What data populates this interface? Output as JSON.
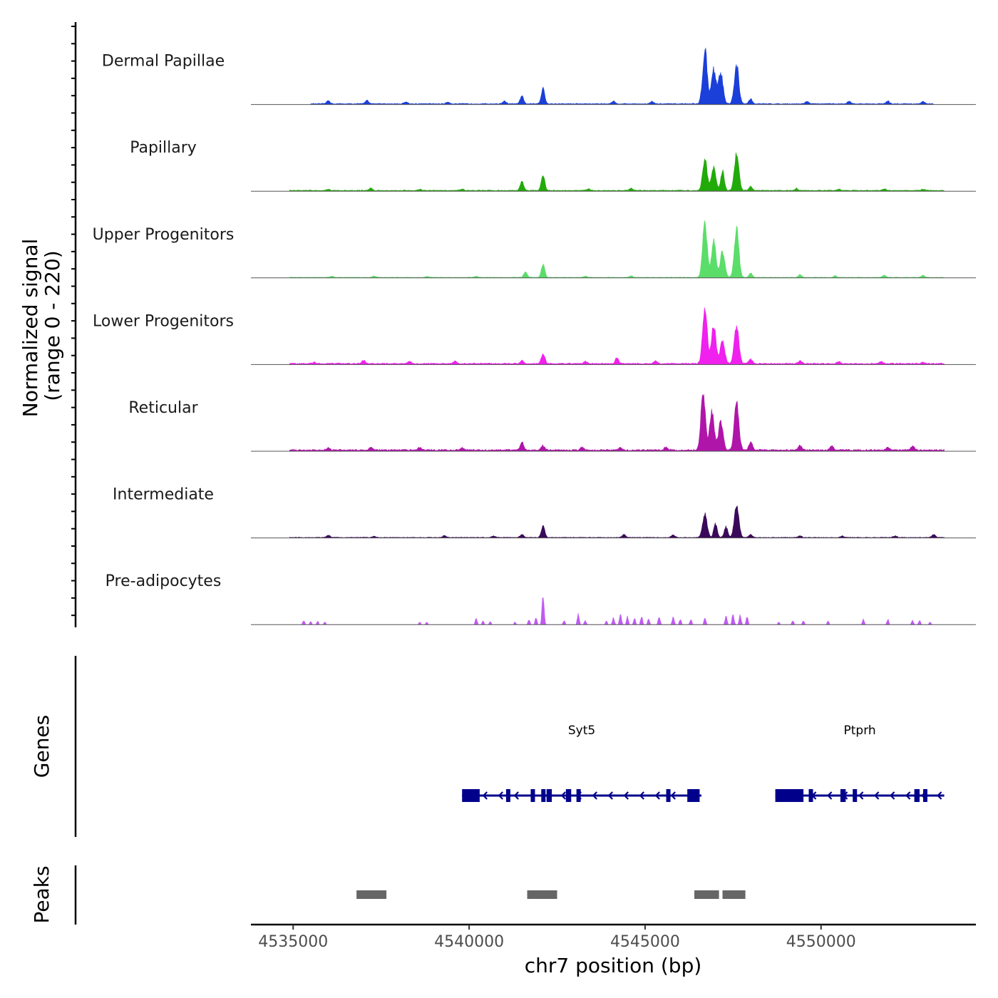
{
  "chart_data": {
    "type": "area",
    "title": "",
    "y_axis_title_line1": "Normalized signal",
    "y_axis_title_line2": "(range 0 - 220)",
    "y_range": [
      0,
      220
    ],
    "x_axis_title": "chr7 position (bp)",
    "x_range": [
      4533800,
      4554400
    ],
    "x_ticks": [
      4535000,
      4540000,
      4545000,
      4550000
    ],
    "x_tick_labels": [
      "4535000",
      "4540000",
      "4545000",
      "4550000"
    ],
    "genes_panel_title": "Genes",
    "peaks_panel_title": "Peaks",
    "tracks": [
      {
        "name": "Dermal Papillae",
        "color": "#1B3FD9",
        "range": [
          4535500,
          4553200
        ],
        "baseline": 3,
        "noise": 0.22,
        "peaks": [
          [
            4536000,
            12
          ],
          [
            4537100,
            14
          ],
          [
            4538200,
            8
          ],
          [
            4539400,
            7
          ],
          [
            4541000,
            10
          ],
          [
            4541500,
            28
          ],
          [
            4542100,
            60
          ],
          [
            4544100,
            10
          ],
          [
            4545200,
            9
          ],
          [
            4546700,
            210
          ],
          [
            4546950,
            130
          ],
          [
            4547150,
            120
          ],
          [
            4547600,
            150
          ],
          [
            4548000,
            18
          ],
          [
            4549600,
            10
          ],
          [
            4550800,
            9
          ],
          [
            4551900,
            10
          ],
          [
            4552900,
            8
          ]
        ]
      },
      {
        "name": "Papillary",
        "color": "#22AA0A",
        "range": [
          4534900,
          4553500
        ],
        "baseline": 3,
        "noise": 0.2,
        "peaks": [
          [
            4536000,
            5
          ],
          [
            4537200,
            9
          ],
          [
            4538600,
            5
          ],
          [
            4539800,
            6
          ],
          [
            4541500,
            35
          ],
          [
            4542100,
            60
          ],
          [
            4543400,
            6
          ],
          [
            4544600,
            8
          ],
          [
            4546700,
            120
          ],
          [
            4546950,
            90
          ],
          [
            4547200,
            75
          ],
          [
            4547600,
            140
          ],
          [
            4548000,
            15
          ],
          [
            4549300,
            8
          ],
          [
            4550500,
            6
          ],
          [
            4551800,
            6
          ],
          [
            4552900,
            5
          ]
        ]
      },
      {
        "name": "Upper Progenitors",
        "color": "#5BDD6A",
        "range": [
          4534900,
          4553500
        ],
        "baseline": 2,
        "noise": 0.2,
        "peaks": [
          [
            4536100,
            5
          ],
          [
            4537300,
            6
          ],
          [
            4538800,
            4
          ],
          [
            4540200,
            5
          ],
          [
            4541600,
            20
          ],
          [
            4542100,
            50
          ],
          [
            4543300,
            5
          ],
          [
            4544600,
            6
          ],
          [
            4546700,
            210
          ],
          [
            4546950,
            140
          ],
          [
            4547200,
            100
          ],
          [
            4547600,
            190
          ],
          [
            4548000,
            15
          ],
          [
            4549400,
            10
          ],
          [
            4550400,
            6
          ],
          [
            4551800,
            8
          ],
          [
            4552900,
            8
          ]
        ]
      },
      {
        "name": "Lower Progenitors",
        "color": "#F020EE",
        "range": [
          4534900,
          4553500
        ],
        "baseline": 4,
        "noise": 0.18,
        "peaks": [
          [
            4535600,
            6
          ],
          [
            4537000,
            12
          ],
          [
            4538300,
            8
          ],
          [
            4539600,
            10
          ],
          [
            4541500,
            12
          ],
          [
            4542100,
            40
          ],
          [
            4543300,
            8
          ],
          [
            4544200,
            22
          ],
          [
            4545300,
            10
          ],
          [
            4546700,
            220
          ],
          [
            4546950,
            150
          ],
          [
            4547200,
            90
          ],
          [
            4547600,
            150
          ],
          [
            4548000,
            18
          ],
          [
            4549400,
            10
          ],
          [
            4550500,
            8
          ],
          [
            4551700,
            8
          ],
          [
            4552900,
            6
          ]
        ]
      },
      {
        "name": "Reticular",
        "color": "#B015A9",
        "range": [
          4534900,
          4553500
        ],
        "baseline": 5,
        "noise": 0.2,
        "peaks": [
          [
            4536000,
            8
          ],
          [
            4537200,
            10
          ],
          [
            4538600,
            9
          ],
          [
            4539800,
            8
          ],
          [
            4541500,
            30
          ],
          [
            4542100,
            18
          ],
          [
            4543200,
            10
          ],
          [
            4544300,
            10
          ],
          [
            4545600,
            12
          ],
          [
            4546650,
            220
          ],
          [
            4546900,
            150
          ],
          [
            4547150,
            110
          ],
          [
            4547600,
            190
          ],
          [
            4548000,
            30
          ],
          [
            4549400,
            18
          ],
          [
            4550300,
            15
          ],
          [
            4551900,
            10
          ],
          [
            4552600,
            15
          ]
        ]
      },
      {
        "name": "Intermediate",
        "color": "#3A0A5A",
        "range": [
          4534900,
          4553500
        ],
        "baseline": 2,
        "noise": 0.22,
        "peaks": [
          [
            4536000,
            8
          ],
          [
            4537300,
            5
          ],
          [
            4539300,
            8
          ],
          [
            4540700,
            6
          ],
          [
            4541500,
            12
          ],
          [
            4542100,
            45
          ],
          [
            4544400,
            12
          ],
          [
            4545800,
            10
          ],
          [
            4546700,
            90
          ],
          [
            4547000,
            50
          ],
          [
            4547300,
            40
          ],
          [
            4547600,
            130
          ],
          [
            4548000,
            12
          ],
          [
            4549400,
            6
          ],
          [
            4550600,
            6
          ],
          [
            4552100,
            6
          ],
          [
            4553200,
            12
          ]
        ]
      },
      {
        "name": "Pre-adipocytes",
        "color": "#C05BF2",
        "range": [
          4535200,
          4553200
        ],
        "baseline": 0,
        "noise": 0,
        "sparse": true,
        "peaks": [
          [
            4535300,
            15
          ],
          [
            4535500,
            12
          ],
          [
            4535700,
            12
          ],
          [
            4535900,
            10
          ],
          [
            4538600,
            10
          ],
          [
            4538800,
            10
          ],
          [
            4540200,
            25
          ],
          [
            4540400,
            15
          ],
          [
            4540600,
            12
          ],
          [
            4541300,
            10
          ],
          [
            4541700,
            20
          ],
          [
            4541900,
            25
          ],
          [
            4542100,
            115
          ],
          [
            4542700,
            15
          ],
          [
            4543100,
            40
          ],
          [
            4543300,
            15
          ],
          [
            4543900,
            15
          ],
          [
            4544100,
            25
          ],
          [
            4544300,
            40
          ],
          [
            4544500,
            30
          ],
          [
            4544700,
            25
          ],
          [
            4544900,
            30
          ],
          [
            4545100,
            20
          ],
          [
            4545400,
            30
          ],
          [
            4545800,
            30
          ],
          [
            4546000,
            20
          ],
          [
            4546300,
            20
          ],
          [
            4546700,
            25
          ],
          [
            4547300,
            35
          ],
          [
            4547500,
            40
          ],
          [
            4547700,
            35
          ],
          [
            4547900,
            30
          ],
          [
            4548800,
            10
          ],
          [
            4549200,
            15
          ],
          [
            4549500,
            15
          ],
          [
            4550200,
            15
          ],
          [
            4551200,
            20
          ],
          [
            4551900,
            20
          ],
          [
            4552600,
            15
          ],
          [
            4552800,
            15
          ],
          [
            4553100,
            10
          ]
        ]
      }
    ],
    "genes": [
      {
        "name": "Syt5",
        "strand": "-",
        "start": 4539800,
        "end": 4546600,
        "label_position": 4543200,
        "color": "#00008B",
        "exons": [
          [
            4539800,
            4540300
          ],
          [
            4541050,
            4541150
          ],
          [
            4541750,
            4541850
          ],
          [
            4542050,
            4542120
          ],
          [
            4542200,
            4542350
          ],
          [
            4542750,
            4542900
          ],
          [
            4543050,
            4543150
          ],
          [
            4545600,
            4545700
          ],
          [
            4546200,
            4546550
          ]
        ]
      },
      {
        "name": "Ptprh",
        "strand": "-",
        "start": 4548700,
        "end": 4553500,
        "label_position": 4551100,
        "color": "#00008B",
        "exons": [
          [
            4548700,
            4549500
          ],
          [
            4549650,
            4549750
          ],
          [
            4550550,
            4550700
          ],
          [
            4550900,
            4551000
          ],
          [
            4552650,
            4552800
          ],
          [
            4552900,
            4552950
          ]
        ]
      }
    ],
    "peaks": [
      [
        4536800,
        4537650
      ],
      [
        4541650,
        4542500
      ],
      [
        4546400,
        4547100
      ],
      [
        4547200,
        4547850
      ]
    ],
    "peak_color": "#666666"
  }
}
